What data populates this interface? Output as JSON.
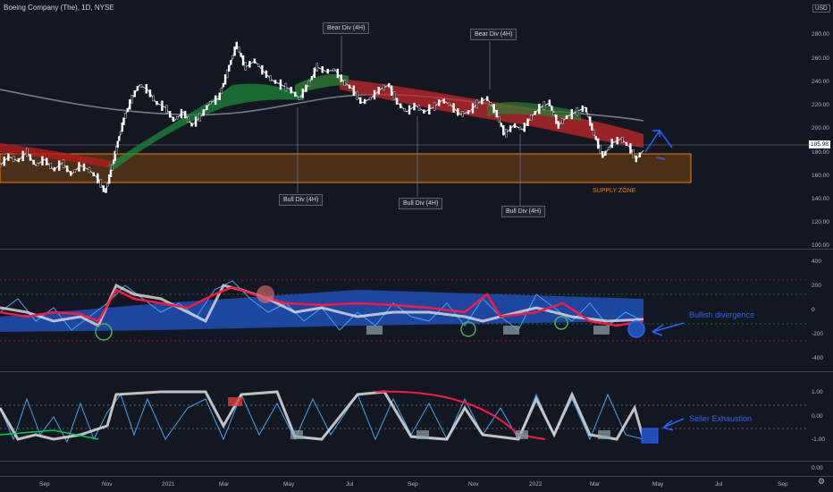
{
  "header": {
    "title": "Boeing Company (The), 1D, NYSE",
    "currency": "USD"
  },
  "price": {
    "current": "185.98",
    "ticks": [
      "280.00",
      "260.00",
      "240.00",
      "220.00",
      "200.00",
      "180.00",
      "160.00",
      "140.00",
      "120.00",
      "100.00"
    ]
  },
  "annotations": {
    "bear1": "Bear Div (4H)",
    "bear2": "Bear Div (4H)",
    "bull1": "Bull Div (4H)",
    "bull2": "Bull Div (4H)",
    "bull3": "Bull Div (4H)",
    "supply": "SUPPLY ZONE",
    "bullish_divergence": "Bullish divergence",
    "seller_exhaustion": "Seller Exhaustion"
  },
  "osc1": {
    "ticks": [
      "400",
      "200",
      "0",
      "-200",
      "-400"
    ]
  },
  "osc2": {
    "ticks": [
      "1.00",
      "0.00",
      "-1.00"
    ]
  },
  "osc3": {
    "ticks": [
      "0.00"
    ]
  },
  "xaxis": [
    "Sep",
    "Nov",
    "2021",
    "Mar",
    "May",
    "Jul",
    "Sep",
    "Nov",
    "2022",
    "Mar",
    "May",
    "Jul",
    "Sep"
  ],
  "colors": {
    "bull": "#00c853",
    "bear": "#ff1744",
    "supply": "#f57c00",
    "accent": "#2962ff",
    "bg": "#131722"
  }
}
